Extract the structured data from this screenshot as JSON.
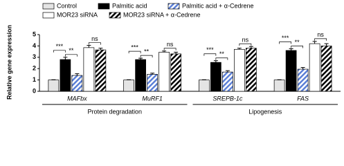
{
  "chart_data": {
    "type": "bar",
    "y_label": "Relative gene expression",
    "categories": [
      "MAFbx",
      "MuRF1",
      "SREPB-1c",
      "FAS"
    ],
    "groups": [
      {
        "label": "Protein degradation",
        "categories": [
          "MAFbx",
          "MuRF1"
        ]
      },
      {
        "label": "Lipogenesis",
        "categories": [
          "SREPB-1c",
          "FAS"
        ]
      }
    ],
    "series": [
      {
        "name": "Control",
        "color": "#e4e4e4",
        "pattern": "solid",
        "values": [
          1,
          1,
          1,
          1
        ],
        "errors": [
          0.02,
          0.02,
          0.02,
          0.02
        ]
      },
      {
        "name": "Palmitic acid",
        "color": "#000000",
        "pattern": "solid",
        "values": [
          2.8,
          2.8,
          2.55,
          3.6
        ],
        "errors": [
          0.2,
          0.12,
          0.15,
          0.15
        ]
      },
      {
        "name": "Palmitic acid + α-Cedrene",
        "color": "#5b7fd6",
        "pattern": "hatch",
        "values": [
          1.4,
          1.5,
          1.7,
          1.95
        ],
        "errors": [
          0.15,
          0.1,
          0.12,
          0.15
        ]
      },
      {
        "name": "MOR23 siRNA",
        "color": "#ffffff",
        "pattern": "solid",
        "values": [
          3.85,
          3.45,
          3.7,
          4.2
        ],
        "errors": [
          0.2,
          0.1,
          0.1,
          0.2
        ]
      },
      {
        "name": "MOR23 siRNA + α-Cedrene",
        "color": "#000000",
        "pattern": "hatch",
        "values": [
          3.65,
          3.3,
          3.8,
          4.0
        ],
        "errors": [
          0.15,
          0.15,
          0.15,
          0.2
        ]
      }
    ],
    "comparisons": [
      {
        "between": [
          "Control",
          "Palmitic acid"
        ],
        "label": "***"
      },
      {
        "between": [
          "Palmitic acid",
          "Palmitic acid + α-Cedrene"
        ],
        "label": "**"
      },
      {
        "between": [
          "MOR23 siRNA",
          "MOR23 siRNA + α-Cedrene"
        ],
        "label": "ns"
      }
    ],
    "ylim": [
      0,
      5
    ],
    "yticks": [
      0,
      1,
      2,
      3,
      4,
      5
    ],
    "legend": "top"
  }
}
